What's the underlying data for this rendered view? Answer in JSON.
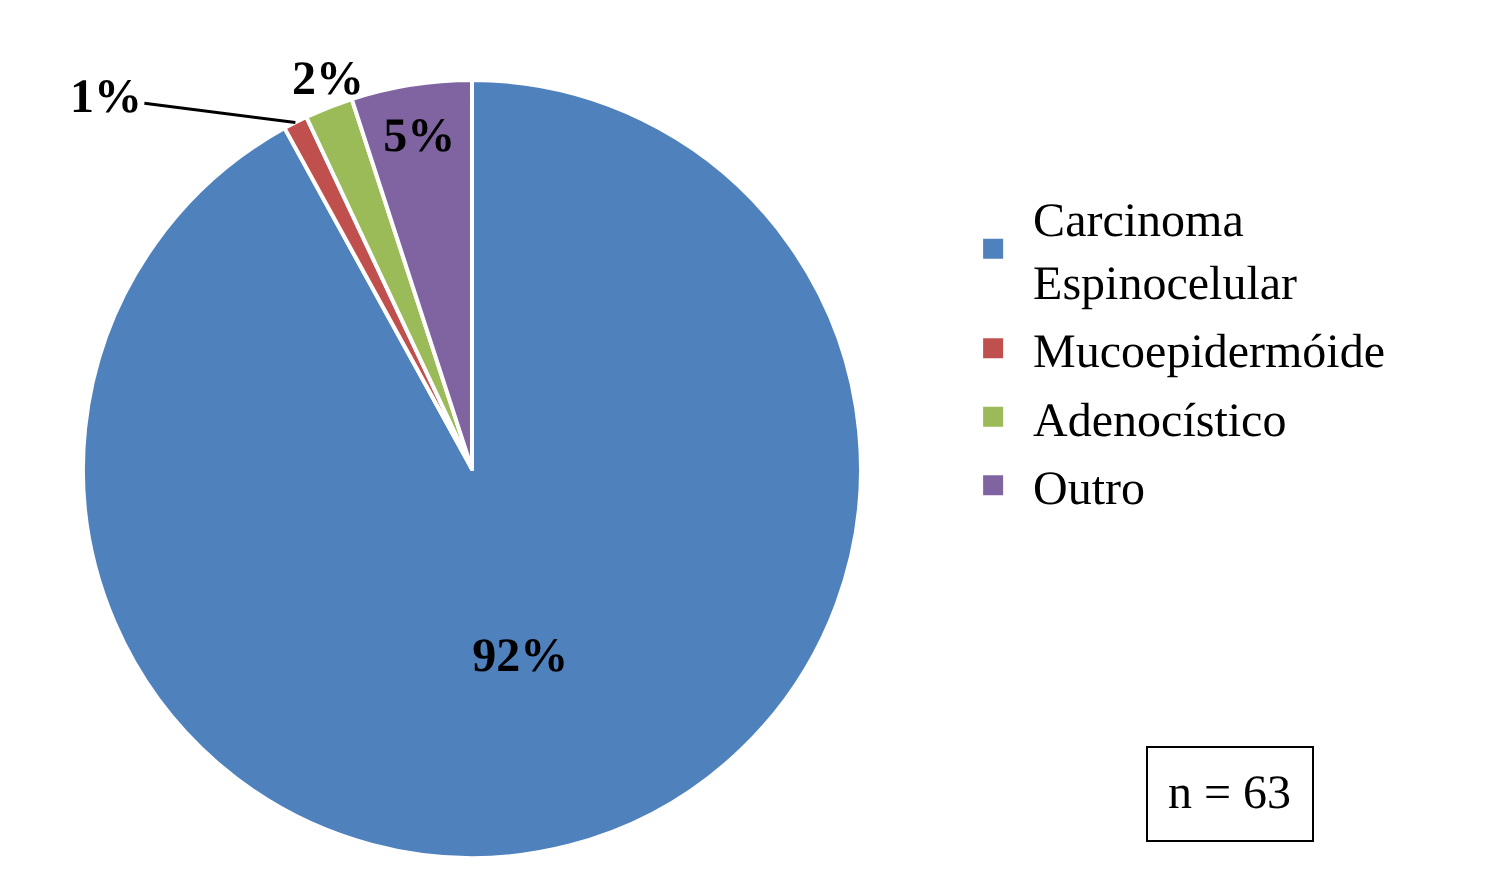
{
  "chart_data": {
    "type": "pie",
    "categories": [
      "Carcinoma Espinocelular",
      "Mucoepidermóide",
      "Adenocístico",
      "Outro"
    ],
    "values": [
      92,
      1,
      2,
      5
    ],
    "colors": [
      "#4f81bd",
      "#c0504d",
      "#9bbb59",
      "#8064a2"
    ],
    "value_labels": [
      "92%",
      "1%",
      "2%",
      "5%"
    ],
    "legend": "right",
    "annotations": [
      "n = 63"
    ]
  }
}
